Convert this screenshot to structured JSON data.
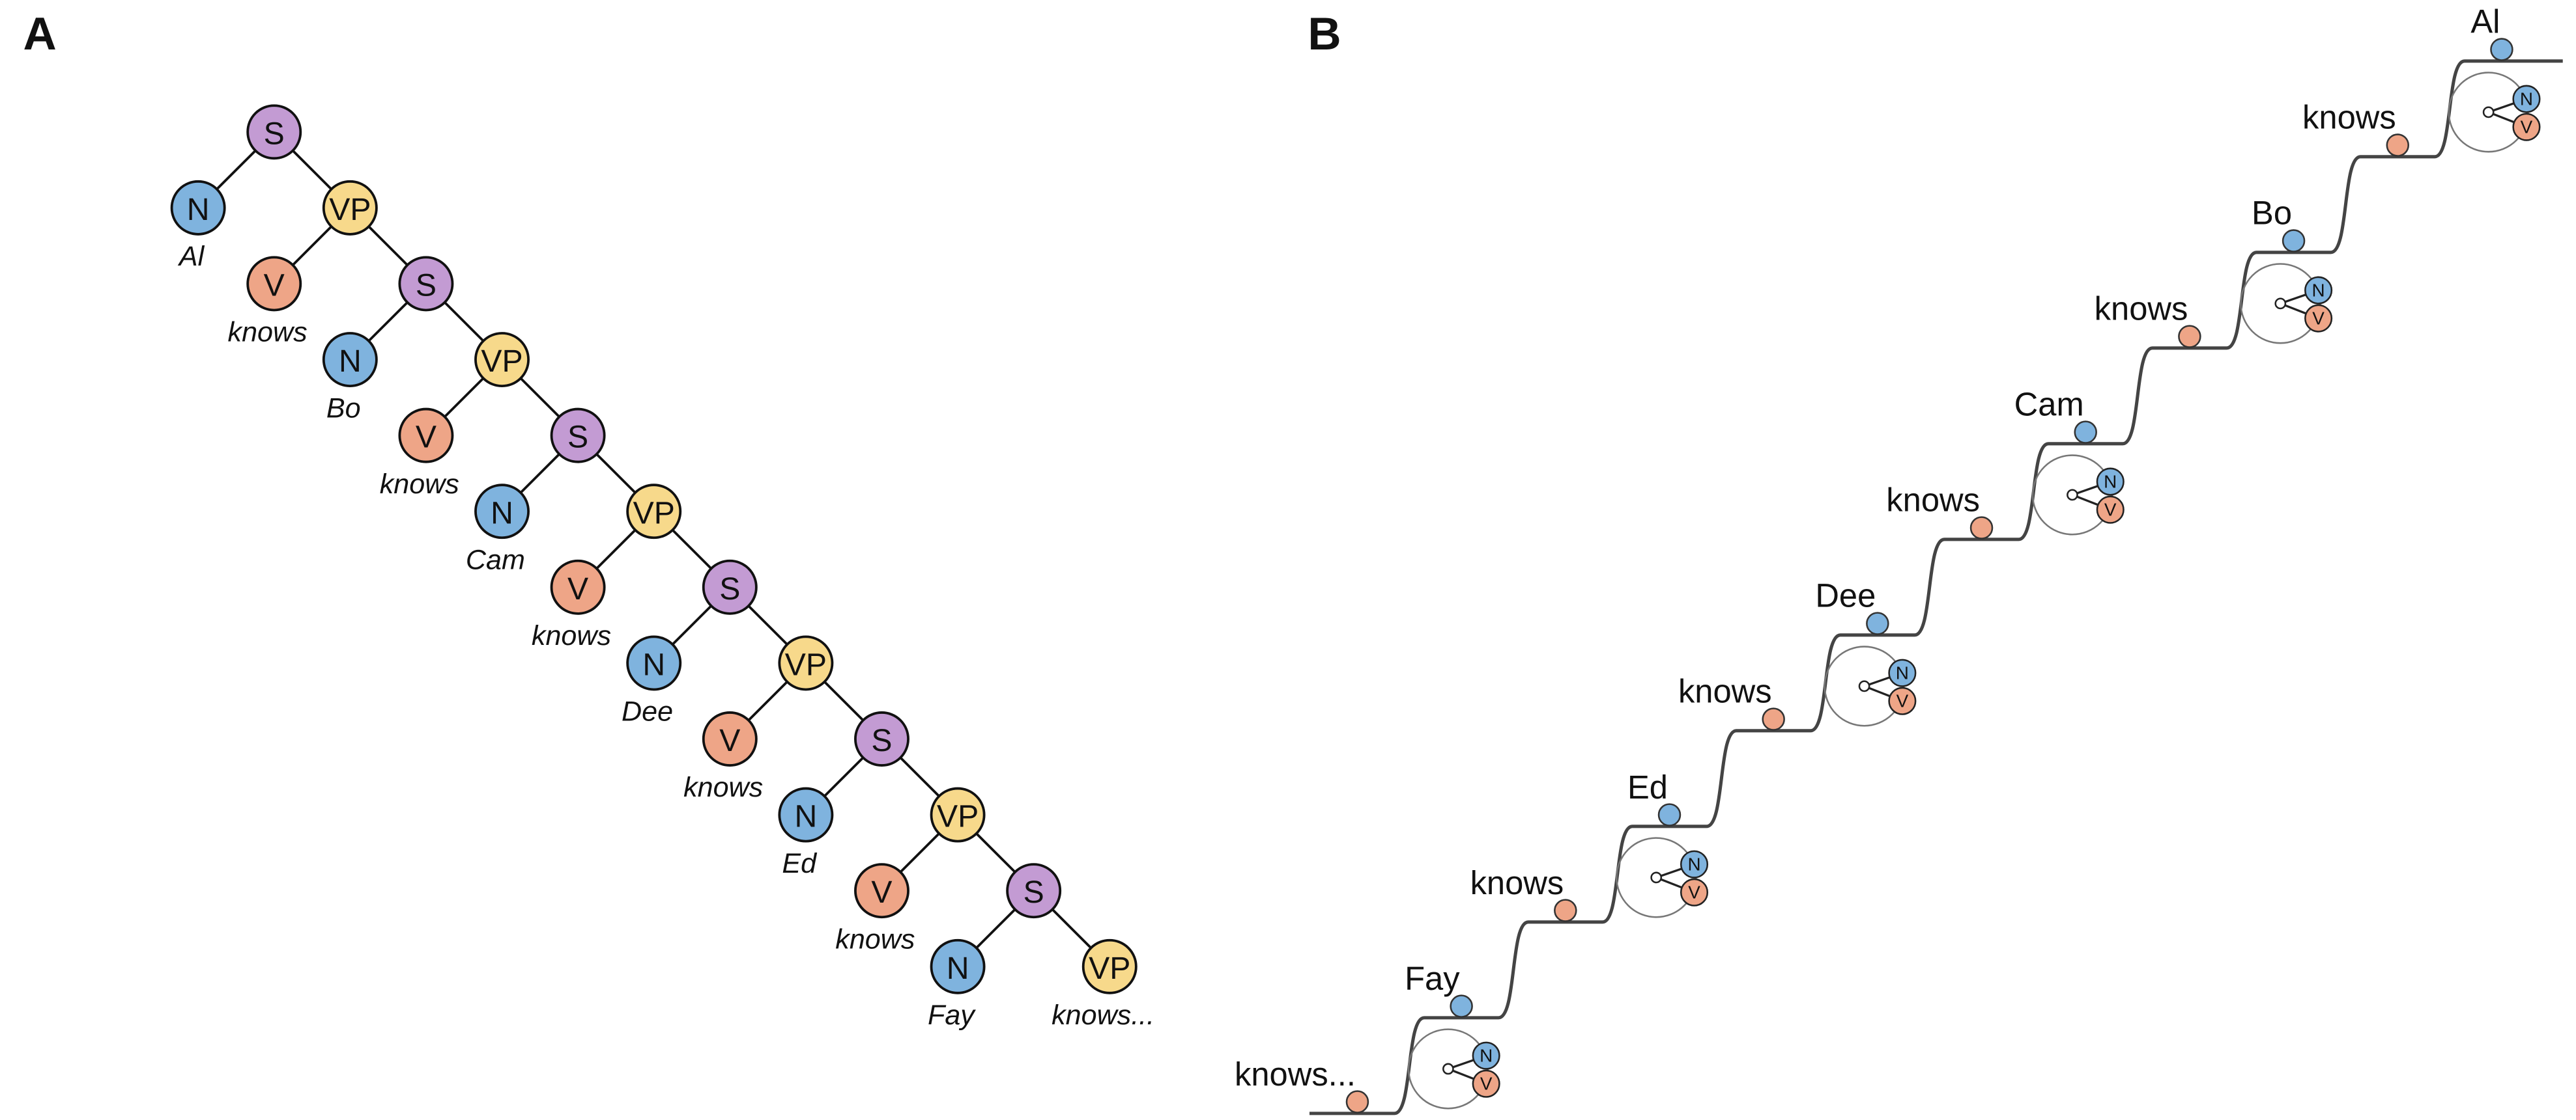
{
  "panels": [
    "A",
    "B"
  ],
  "tree": {
    "nodes": [
      {
        "label": "S"
      },
      {
        "label": "N",
        "word": "Al"
      },
      {
        "label": "VP"
      },
      {
        "label": "V",
        "word": "knows"
      },
      {
        "label": "S"
      },
      {
        "label": "N",
        "word": "Bo"
      },
      {
        "label": "VP"
      },
      {
        "label": "V",
        "word": "knows"
      },
      {
        "label": "S"
      },
      {
        "label": "N",
        "word": "Cam"
      },
      {
        "label": "VP"
      },
      {
        "label": "V",
        "word": "knows"
      },
      {
        "label": "S"
      },
      {
        "label": "N",
        "word": "Dee"
      },
      {
        "label": "VP"
      },
      {
        "label": "V",
        "word": "knows"
      },
      {
        "label": "S"
      },
      {
        "label": "N",
        "word": "Ed"
      },
      {
        "label": "VP"
      },
      {
        "label": "V",
        "word": "knows"
      },
      {
        "label": "S"
      },
      {
        "label": "N",
        "word": "Fay"
      },
      {
        "label": "VP",
        "word": "knows..."
      }
    ]
  },
  "stairs": {
    "words": [
      "Al",
      "knows",
      "Bo",
      "knows",
      "Cam",
      "knows",
      "Dee",
      "knows",
      "Ed",
      "knows",
      "Fay",
      "knows..."
    ],
    "icon_labels": [
      "N",
      "V"
    ]
  }
}
